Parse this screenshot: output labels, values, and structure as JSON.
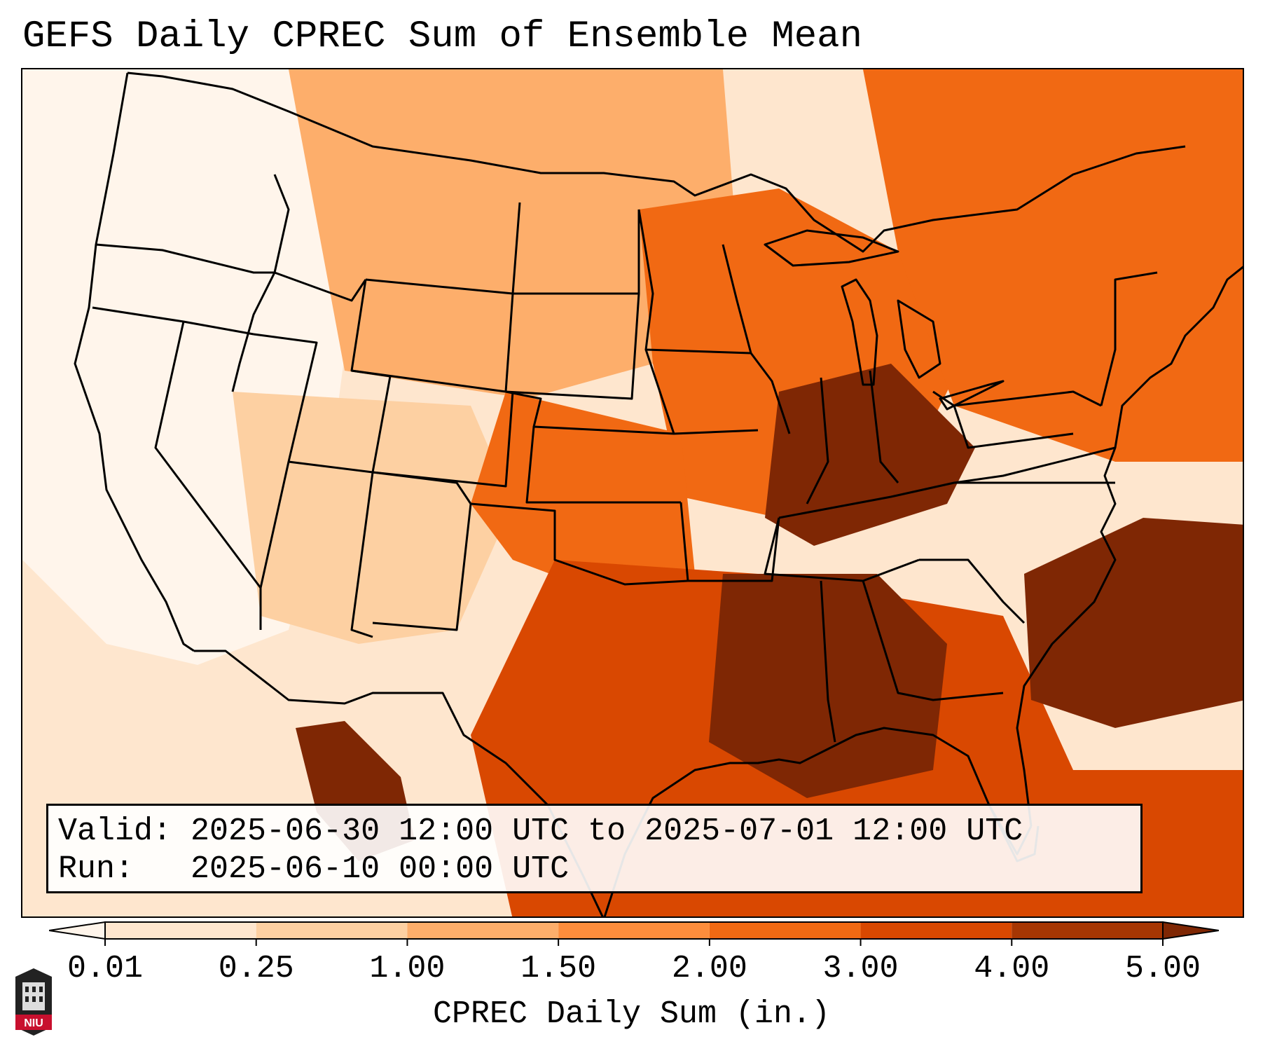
{
  "title": "GEFS Daily CPREC Sum of Ensemble Mean",
  "info_box": {
    "valid_line": "Valid: 2025-06-30 12:00 UTC to 2025-07-01 12:00 UTC",
    "run_line": "Run:   2025-06-10 00:00 UTC"
  },
  "colorbar": {
    "label": "CPREC Daily Sum (in.)",
    "ticks": [
      "0.01",
      "0.25",
      "1.00",
      "1.50",
      "2.00",
      "3.00",
      "4.00",
      "5.00"
    ],
    "colors": [
      "#fff5eb",
      "#fee6ce",
      "#fdd0a2",
      "#fdae6b",
      "#fd8d3c",
      "#f16913",
      "#d94801",
      "#a63603",
      "#7f2704"
    ]
  },
  "logo": {
    "text": "NIU"
  },
  "map": {
    "region": "Contiguous United States",
    "precip_zones": [
      {
        "name": "southeast-gulf",
        "level": 8
      },
      {
        "name": "ohio-tennessee-valley",
        "level": 8
      },
      {
        "name": "atlantic-offshore",
        "level": 8
      },
      {
        "name": "mexico-sierra-madre",
        "level": 8
      },
      {
        "name": "gulf-coast",
        "level": 6
      },
      {
        "name": "midwest",
        "level": 5
      },
      {
        "name": "northeast",
        "level": 5
      },
      {
        "name": "southern-plains",
        "level": 5
      },
      {
        "name": "northern-plains",
        "level": 3
      },
      {
        "name": "southwest",
        "level": 2
      },
      {
        "name": "pacific-northwest",
        "level": 0
      }
    ]
  }
}
